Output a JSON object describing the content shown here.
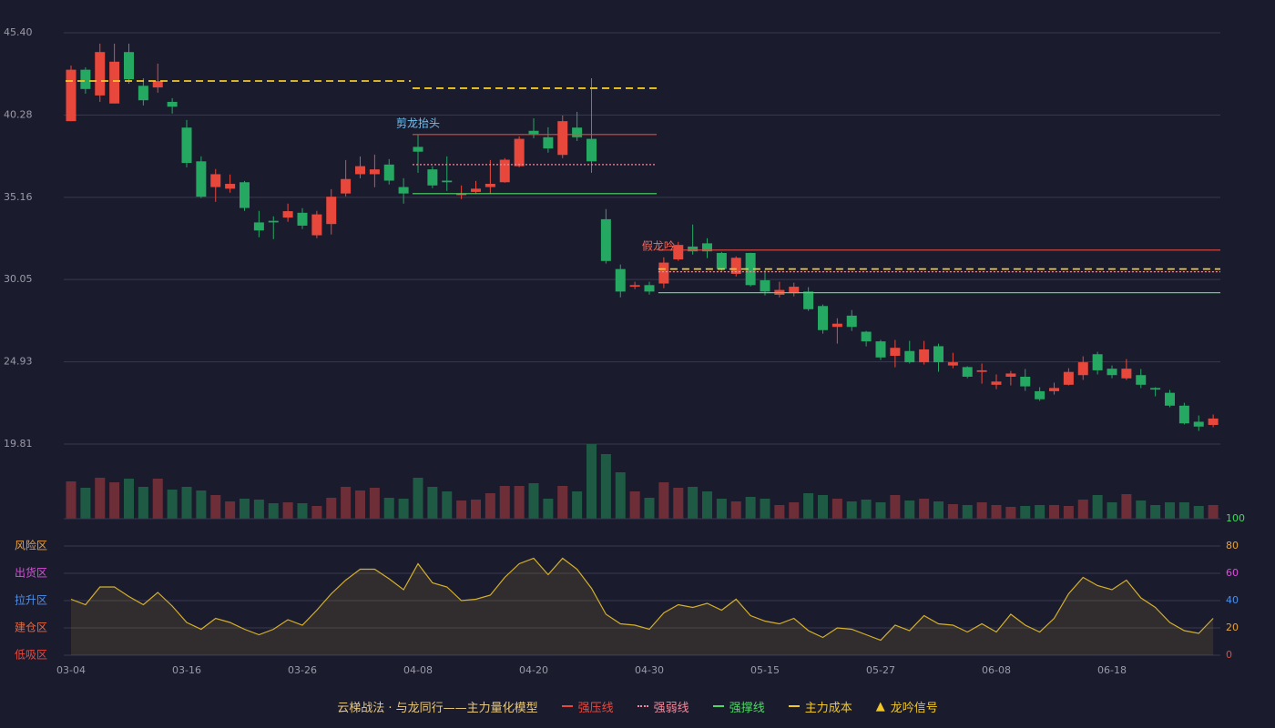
{
  "chart_data": [
    {
      "type": "candlestick",
      "open": [
        39.9,
        43.1,
        41.5,
        41.0,
        44.2,
        42.1,
        42.0,
        41.1,
        39.5,
        37.4,
        35.8,
        35.7,
        36.1,
        33.6,
        33.7,
        33.9,
        34.2,
        32.8,
        33.5,
        35.4,
        36.6,
        36.6,
        37.2,
        35.8,
        38.3,
        36.9,
        36.2,
        35.3,
        35.5,
        35.8,
        36.1,
        37.1,
        39.3,
        38.9,
        37.8,
        39.5,
        38.8,
        33.8,
        30.7,
        29.6,
        29.7,
        29.8,
        31.3,
        32.1,
        32.3,
        31.7,
        30.4,
        31.7,
        30.0,
        29.1,
        29.2,
        29.3,
        28.4,
        27.1,
        27.8,
        26.8,
        26.2,
        25.3,
        25.6,
        24.9,
        25.9,
        24.7,
        24.6,
        24.3,
        23.5,
        24.0,
        24.0,
        23.1,
        23.1,
        23.5,
        24.1,
        25.4,
        24.5,
        23.9,
        24.1,
        23.3,
        23.0,
        22.2,
        21.2,
        21.0
      ],
      "high": [
        43.36,
        43.25,
        44.72,
        44.72,
        44.72,
        42.57,
        43.48,
        41.33,
        39.97,
        37.71,
        36.92,
        36.58,
        36.18,
        34.32,
        33.98,
        34.77,
        34.49,
        34.32,
        35.67,
        37.48,
        37.71,
        37.82,
        37.54,
        36.35,
        39.07,
        37.09,
        37.71,
        35.9,
        36.18,
        37.48,
        37.6,
        38.95,
        40.08,
        39.52,
        40.25,
        40.48,
        42.57,
        34.43,
        30.98,
        29.91,
        29.91,
        31.43,
        32.39,
        33.47,
        32.62,
        31.77,
        31.49,
        31.71,
        30.64,
        29.91,
        29.85,
        29.57,
        28.49,
        27.64,
        28.15,
        26.85,
        26.29,
        26.29,
        26.23,
        26.23,
        26.06,
        25.49,
        24.65,
        24.82,
        24.14,
        24.36,
        24.48,
        23.35,
        23.63,
        24.53,
        25.27,
        25.55,
        24.7,
        25.1,
        24.48,
        23.35,
        23.18,
        22.38,
        21.59,
        21.65
      ],
      "low": [
        39.9,
        41.61,
        41.1,
        41.0,
        42.23,
        40.88,
        41.67,
        40.37,
        37.03,
        35.11,
        34.88,
        35.45,
        34.32,
        32.68,
        32.56,
        33.64,
        33.19,
        32.62,
        32.85,
        35.22,
        36.35,
        35.79,
        35.96,
        34.77,
        36.69,
        35.73,
        35.56,
        35.05,
        35.39,
        35.39,
        36.07,
        37.03,
        38.84,
        37.94,
        37.6,
        38.67,
        36.69,
        31.04,
        28.94,
        29.45,
        29.11,
        29.51,
        31.21,
        31.6,
        31.38,
        30.58,
        30.24,
        29.62,
        29.06,
        28.94,
        29.0,
        28.1,
        26.68,
        26.06,
        26.85,
        25.89,
        25.04,
        24.59,
        24.82,
        24.76,
        24.31,
        24.53,
        23.91,
        23.57,
        23.23,
        23.46,
        23.12,
        22.5,
        22.89,
        23.46,
        23.8,
        24.14,
        23.91,
        23.8,
        23.29,
        22.78,
        22.1,
        21.03,
        20.63,
        20.86
      ],
      "close": [
        43.1,
        41.9,
        44.2,
        43.6,
        42.5,
        41.2,
        42.4,
        40.8,
        37.3,
        35.2,
        36.6,
        36.0,
        34.5,
        33.1,
        33.6,
        34.3,
        33.4,
        34.1,
        35.2,
        36.3,
        37.1,
        36.9,
        36.2,
        35.4,
        38.0,
        35.9,
        36.1,
        35.4,
        35.7,
        36.0,
        37.5,
        38.8,
        39.1,
        38.2,
        39.9,
        38.9,
        37.4,
        31.2,
        29.3,
        29.7,
        29.3,
        31.1,
        32.2,
        31.8,
        31.8,
        30.7,
        31.4,
        29.7,
        29.3,
        29.4,
        29.6,
        28.2,
        26.9,
        27.3,
        27.1,
        26.2,
        25.2,
        25.8,
        24.9,
        25.7,
        24.9,
        24.9,
        24.0,
        24.4,
        23.7,
        24.2,
        23.4,
        22.6,
        23.3,
        24.3,
        24.9,
        24.4,
        24.1,
        24.5,
        23.5,
        23.2,
        22.2,
        21.1,
        20.9,
        21.4
      ],
      "up_color": "#e8483c",
      "down_color": "#25a862",
      "ylim": [
        19.81,
        45.4
      ],
      "yticks": [
        19.81,
        24.93,
        30.05,
        35.16,
        40.28,
        {
          "value": 45.4,
          "label": "45.40"
        }
      ],
      "grid": true,
      "legend": {
        "title": "云梯战法 · 与龙同行——主力量化模型",
        "title_color": "#e8c87a",
        "items": [
          {
            "name": "强压线",
            "color": "#e8483c",
            "style": "solid",
            "lines": [
              {
                "from": 24,
                "to": 40,
                "value": 39.07
              },
              {
                "from": 41,
                "to": 79,
                "value": 31.88
              }
            ]
          },
          {
            "name": "强弱线",
            "color": "#f08a9a",
            "style": "dotted",
            "lines": [
              {
                "from": 24,
                "to": 40,
                "value": 37.2
              },
              {
                "from": 41,
                "to": 79,
                "value": 30.53
              }
            ]
          },
          {
            "name": "强撑线",
            "color": "#4cd964",
            "style": "solid",
            "lines": [
              {
                "from": 24,
                "to": 40,
                "value": 35.39
              },
              {
                "from": 41,
                "to": 79,
                "value": 29.23
              }
            ]
          },
          {
            "name": "主力成本",
            "color": "#f0c828",
            "style": "dashed",
            "lines": [
              {
                "from": 0,
                "to": 23,
                "value": 42.4
              },
              {
                "from": 24,
                "to": 40,
                "value": 41.95
              },
              {
                "from": 41,
                "to": 79,
                "value": 30.7
              }
            ]
          },
          {
            "name": "龙吟信号",
            "color": "#f0c828",
            "marker": "▲",
            "signals": [
              {
                "index": 24,
                "label": "剪龙抬头",
                "color": "#6cc4f4"
              },
              {
                "index": 41,
                "label": "假龙吟",
                "color": "#f06a5a"
              }
            ]
          }
        ]
      }
    },
    {
      "type": "bar",
      "values": [
        41,
        34,
        45,
        40,
        44,
        35,
        44,
        32,
        35,
        31,
        26,
        19,
        22,
        21,
        17,
        18,
        17,
        14,
        23,
        35,
        31,
        34,
        23,
        22,
        45,
        35,
        30,
        20,
        21,
        28,
        36,
        36,
        39,
        22,
        36,
        30,
        82,
        71,
        51,
        30,
        23,
        40,
        34,
        35,
        30,
        22,
        19,
        24,
        22,
        15,
        18,
        28,
        26,
        22,
        19,
        21,
        18,
        26,
        20,
        22,
        19,
        16,
        15,
        18,
        15,
        13,
        14,
        15,
        15,
        14,
        21,
        26,
        18,
        27,
        20,
        15,
        18,
        18,
        14,
        15
      ],
      "up_color": "#6e2e38",
      "down_color": "#1f5a44"
    },
    {
      "type": "area",
      "values": [
        41,
        37,
        50,
        50,
        43,
        37,
        46,
        36,
        24,
        19,
        27,
        24,
        19,
        15,
        19,
        26,
        22,
        33,
        45,
        55,
        63,
        63,
        56,
        48,
        67,
        53,
        50,
        40,
        41,
        44,
        57,
        67,
        71,
        59,
        71,
        63,
        49,
        30,
        23,
        22,
        19,
        31,
        37,
        35,
        38,
        33,
        41,
        29,
        25,
        23,
        27,
        18,
        13,
        20,
        19,
        15,
        11,
        22,
        18,
        29,
        23,
        22,
        17,
        23,
        17,
        30,
        22,
        17,
        27,
        45,
        57,
        51,
        48,
        55,
        42,
        35,
        24,
        18,
        16,
        27
      ],
      "color": "#d4b02a",
      "categories": [
        "03-04",
        null,
        null,
        null,
        null,
        null,
        null,
        null,
        "03-16",
        null,
        null,
        null,
        null,
        null,
        null,
        null,
        "03-26",
        null,
        null,
        null,
        null,
        null,
        null,
        null,
        "04-08",
        null,
        null,
        null,
        null,
        null,
        null,
        null,
        "04-20",
        null,
        null,
        null,
        null,
        null,
        null,
        null,
        "04-30",
        null,
        null,
        null,
        null,
        null,
        null,
        null,
        "05-15",
        null,
        null,
        null,
        null,
        null,
        null,
        null,
        "05-27",
        null,
        null,
        null,
        null,
        null,
        null,
        null,
        "06-08",
        null,
        null,
        null,
        null,
        null,
        null,
        null,
        "06-18",
        null,
        null,
        null,
        null,
        null,
        null,
        null
      ],
      "ylim": [
        0,
        100
      ],
      "yticks": [
        0,
        20,
        40,
        60,
        80,
        100
      ],
      "ytick_colors": [
        "#e8483c",
        "#e8a23c",
        "#4f8fe8",
        "#d94fd9",
        "#e8a23c",
        "#3ddc5a"
      ],
      "zones": [
        {
          "label": "风险区",
          "value": 80,
          "color": "#e8a23c"
        },
        {
          "label": "出货区",
          "value": 60,
          "color": "#d94fd9"
        },
        {
          "label": "拉升区",
          "value": 40,
          "color": "#4f8fe8"
        },
        {
          "label": "建仓区",
          "value": 20,
          "color": "#e8683c"
        },
        {
          "label": "低吸区",
          "value": 0,
          "color": "#e8483c"
        }
      ]
    }
  ]
}
